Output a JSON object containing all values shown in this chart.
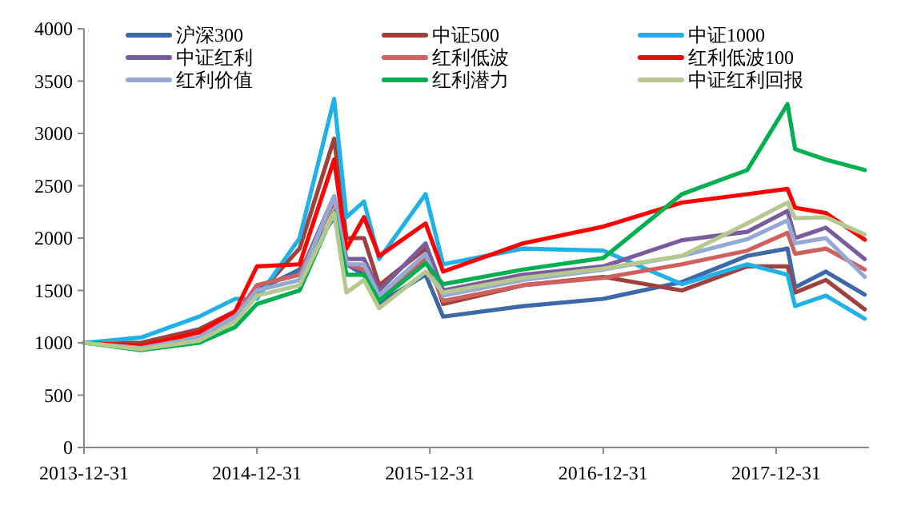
{
  "chart_data": {
    "type": "line",
    "x": [
      "2013-12-31",
      "2014-04-30",
      "2014-08-31",
      "2014-11-15",
      "2014-12-31",
      "2015-03-31",
      "2015-06-12",
      "2015-07-08",
      "2015-08-14",
      "2015-09-15",
      "2015-12-22",
      "2016-01-28",
      "2016-07-15",
      "2016-12-31",
      "2017-06-15",
      "2017-10-31",
      "2018-01-24",
      "2018-02-09",
      "2018-04-15",
      "2018-07-06"
    ],
    "series": [
      {
        "name": "沪深300",
        "color": "#3d69a8",
        "values": [
          1000,
          950,
          1050,
          1250,
          1500,
          1700,
          2200,
          1750,
          1650,
          1380,
          1650,
          1250,
          1350,
          1420,
          1580,
          1830,
          1900,
          1530,
          1680,
          1460
        ]
      },
      {
        "name": "中证500",
        "color": "#a0413e",
        "values": [
          1000,
          1000,
          1130,
          1300,
          1450,
          1900,
          2950,
          2000,
          2000,
          1550,
          1900,
          1370,
          1550,
          1630,
          1500,
          1730,
          1730,
          1480,
          1600,
          1320
        ]
      },
      {
        "name": "中证1000",
        "color": "#1fb1e8",
        "values": [
          1000,
          1050,
          1250,
          1420,
          1420,
          2000,
          3330,
          2200,
          2350,
          1800,
          2420,
          1750,
          1900,
          1880,
          1560,
          1750,
          1650,
          1350,
          1450,
          1230
        ]
      },
      {
        "name": "中证红利",
        "color": "#7a5c9c",
        "values": [
          1000,
          950,
          1050,
          1250,
          1550,
          1650,
          2400,
          1800,
          1800,
          1500,
          1950,
          1500,
          1650,
          1730,
          1980,
          2060,
          2260,
          2000,
          2100,
          1800
        ]
      },
      {
        "name": "红利低波",
        "color": "#d0605e",
        "values": [
          1000,
          950,
          1050,
          1250,
          1550,
          1650,
          2350,
          1750,
          1700,
          1430,
          1800,
          1400,
          1550,
          1620,
          1750,
          1880,
          2050,
          1850,
          1900,
          1700
        ]
      },
      {
        "name": "红利低波100",
        "color": "#ff0000",
        "values": [
          1000,
          970,
          1100,
          1300,
          1730,
          1750,
          2750,
          1900,
          2200,
          1830,
          2140,
          1680,
          1950,
          2110,
          2340,
          2420,
          2470,
          2290,
          2240,
          1985
        ]
      },
      {
        "name": "红利价值",
        "color": "#95a9d6",
        "values": [
          1000,
          950,
          1050,
          1250,
          1500,
          1600,
          2400,
          1750,
          1750,
          1450,
          1850,
          1450,
          1600,
          1700,
          1830,
          1990,
          2170,
          1950,
          2000,
          1630
        ]
      },
      {
        "name": "红利潜力",
        "color": "#00b050",
        "values": [
          1000,
          930,
          1000,
          1150,
          1370,
          1500,
          2250,
          1650,
          1650,
          1400,
          1760,
          1560,
          1700,
          1810,
          2420,
          2650,
          3280,
          2850,
          2750,
          2650
        ]
      },
      {
        "name": "中证红利回报",
        "color": "#b5c98e",
        "values": [
          1000,
          940,
          1020,
          1200,
          1450,
          1550,
          2240,
          1480,
          1600,
          1330,
          1680,
          1480,
          1620,
          1710,
          1830,
          2140,
          2340,
          2190,
          2200,
          2035
        ]
      }
    ],
    "xlim": [
      "2013-12-31",
      "2018-07-15"
    ],
    "xticks": [
      "2013-12-31",
      "2014-12-31",
      "2015-12-31",
      "2016-12-31",
      "2017-12-31"
    ],
    "ylim": [
      0,
      4000
    ],
    "yticks": [
      0,
      500,
      1000,
      1500,
      2000,
      2500,
      3000,
      3500,
      4000
    ],
    "grid": false,
    "legend": "top",
    "marker": "none",
    "line_style": "solid"
  }
}
